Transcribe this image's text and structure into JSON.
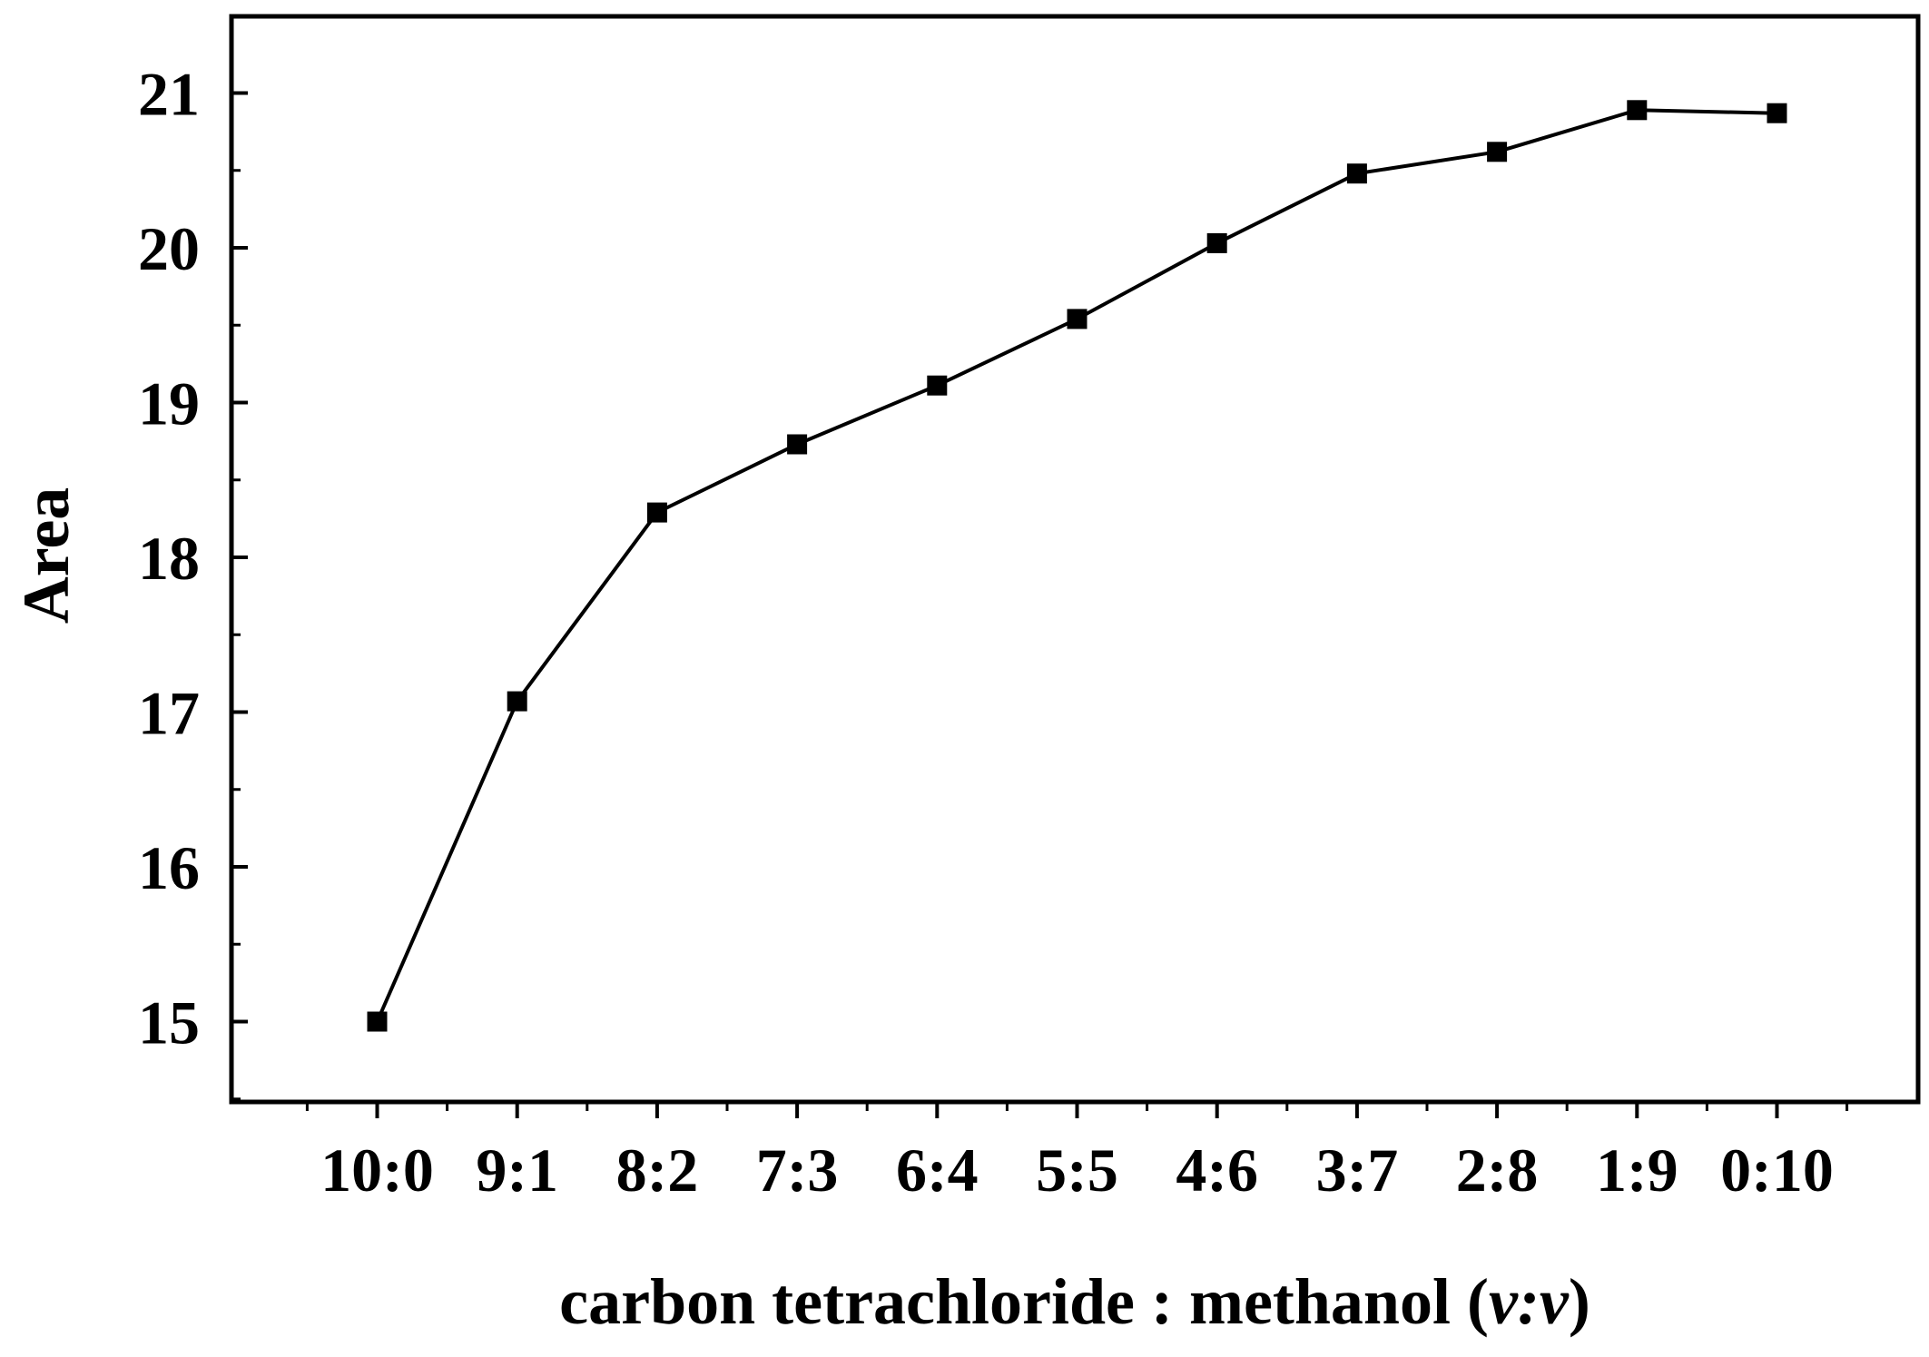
{
  "chart_data": {
    "type": "line",
    "title": "",
    "xlabel_main": "carbon tetrachloride : methanol (",
    "xlabel_ital": "v:v",
    "xlabel_end": ")",
    "ylabel": "Area",
    "categories": [
      "10:0",
      "9:1",
      "8:2",
      "7:3",
      "6:4",
      "5:5",
      "4:6",
      "3:7",
      "2:8",
      "1:9",
      "0:10"
    ],
    "series": [
      {
        "values": [
          15.0,
          17.07,
          18.29,
          18.73,
          19.11,
          19.54,
          20.03,
          20.48,
          20.62,
          20.89,
          20.87
        ]
      }
    ],
    "ylim": [
      14.5,
      21.5
    ],
    "yticks": [
      15,
      16,
      17,
      18,
      19,
      20,
      21
    ],
    "grid": false,
    "legend": "none",
    "colors": {
      "line": "#000000",
      "marker": "#000000",
      "axis": "#000000"
    }
  }
}
